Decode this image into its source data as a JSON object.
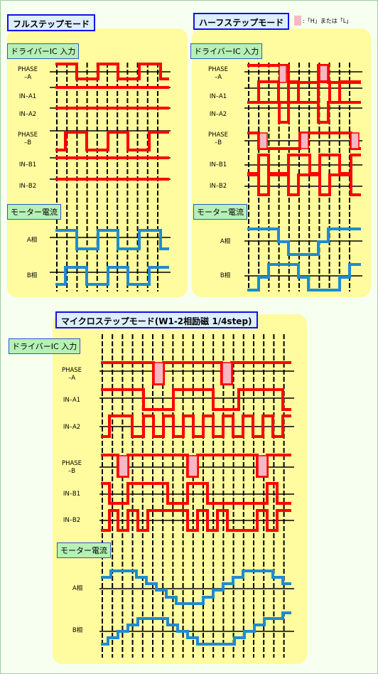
{
  "panels": {
    "full": {
      "title": "フルステップモード",
      "driver_label": "ドライバーIC 入力",
      "current_label": "モーター電流",
      "signals": [
        "PHASE\n–A",
        "IN–A1",
        "IN–A2",
        "PHASE\n–B",
        "IN–B1",
        "IN–B2"
      ],
      "currents": [
        "A相",
        "B相"
      ]
    },
    "half": {
      "title": "ハーフステップモード",
      "driver_label": "ドライバーIC 入力",
      "current_label": "モーター電流",
      "signals": [
        "PHASE\n–A",
        "IN–A1",
        "IN–A2",
        "PHASE\n–B",
        "IN–B1",
        "IN–B2"
      ],
      "currents": [
        "A相",
        "B相"
      ]
    },
    "micro": {
      "title": "マイクロステップモード(W1-2相励磁 1/4step)",
      "driver_label": "ドライバーIC 入力",
      "current_label": "モーター電流",
      "signals": [
        "PHASE\n–A",
        "IN–A1",
        "IN–A2",
        "PHASE\n–B",
        "IN–B1",
        "IN–B2"
      ],
      "currents": [
        "A相",
        "B相"
      ]
    }
  },
  "legend": {
    "text": ":「H」または「L」",
    "swatch_color": "#f6b8c4"
  },
  "colors": {
    "panel_bg": "#fffb9e",
    "signal": "#ff0000",
    "current": "#1e8bd0",
    "dont_care": "#f6b8c4"
  }
}
